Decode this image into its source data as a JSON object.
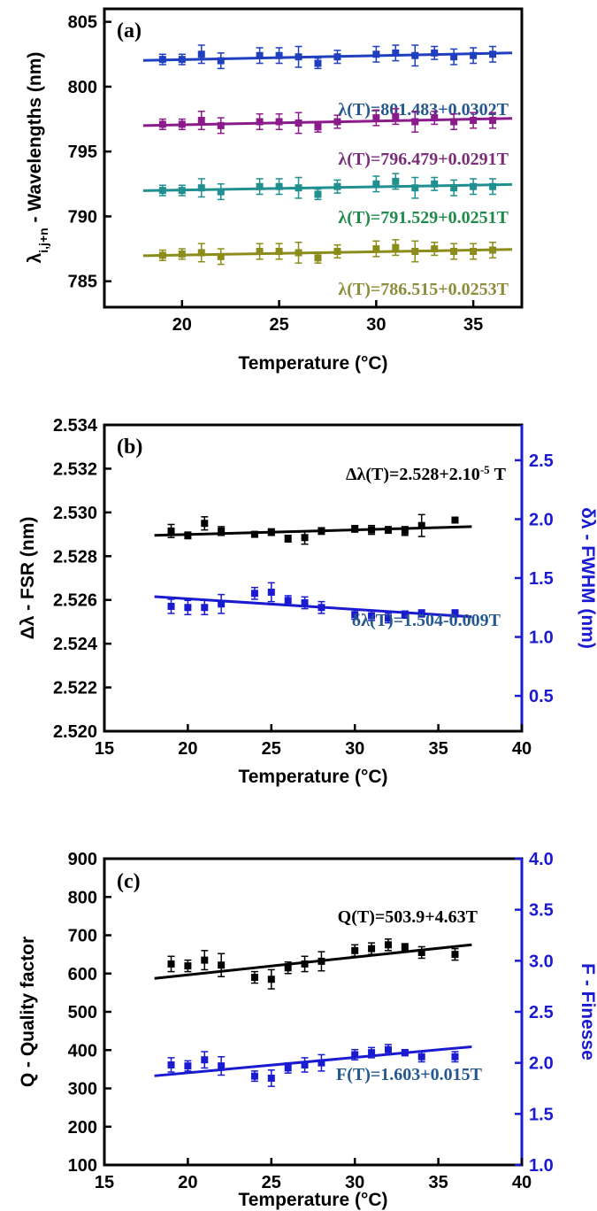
{
  "chart_data": [
    {
      "panel": "(a)",
      "type": "scatter",
      "xlabel": "Temperature (°C)",
      "ylabel_main": "λ",
      "ylabel_sub": "i,j+n",
      "ylabel_rest": " - Wavelengths (nm)",
      "xlim": [
        16,
        37.5
      ],
      "ylim": [
        783,
        806
      ],
      "xticks": [
        20,
        25,
        30,
        35
      ],
      "yticks": [
        785,
        790,
        795,
        800,
        805
      ],
      "series": [
        {
          "color": "#1f3fbf",
          "label_color": "#24588f",
          "equation": "λ(T)=801.483+0.0302T",
          "fit": {
            "intercept": 801.483,
            "slope": 0.0302,
            "x_range": [
              18,
              37
            ]
          },
          "x": [
            19,
            20,
            21,
            22,
            24,
            25,
            26,
            27,
            28,
            30,
            31,
            32,
            33,
            34,
            35,
            36
          ],
          "y": [
            802.1,
            802.1,
            802.5,
            802.0,
            802.4,
            802.4,
            802.3,
            801.8,
            802.3,
            802.5,
            802.6,
            802.4,
            802.6,
            802.3,
            802.4,
            802.5
          ],
          "err": [
            0.4,
            0.4,
            0.7,
            0.6,
            0.6,
            0.6,
            0.8,
            0.4,
            0.5,
            0.6,
            0.6,
            0.8,
            0.5,
            0.6,
            0.6,
            0.6
          ]
        },
        {
          "color": "#8b1a8b",
          "label_color": "#7a2e7a",
          "equation": "λ(T)=796.479+0.0291T",
          "fit": {
            "intercept": 796.479,
            "slope": 0.0291,
            "x_range": [
              18,
              37
            ]
          },
          "x": [
            19,
            20,
            21,
            22,
            24,
            25,
            26,
            27,
            28,
            30,
            31,
            32,
            33,
            34,
            35,
            36
          ],
          "y": [
            797.1,
            797.1,
            797.4,
            797.0,
            797.3,
            797.3,
            797.2,
            796.9,
            797.3,
            797.6,
            797.7,
            797.3,
            797.6,
            797.3,
            797.4,
            797.4
          ],
          "err": [
            0.4,
            0.4,
            0.7,
            0.6,
            0.6,
            0.6,
            0.8,
            0.4,
            0.5,
            0.6,
            0.6,
            0.8,
            0.5,
            0.6,
            0.6,
            0.6
          ]
        },
        {
          "color": "#1f8f8f",
          "label_color": "#1f8a4a",
          "equation": "λ(T)=791.529+0.0251T",
          "fit": {
            "intercept": 791.529,
            "slope": 0.0251,
            "x_range": [
              18,
              37
            ]
          },
          "x": [
            19,
            20,
            21,
            22,
            24,
            25,
            26,
            27,
            28,
            30,
            31,
            32,
            33,
            34,
            35,
            36
          ],
          "y": [
            792.0,
            792.0,
            792.2,
            791.9,
            792.3,
            792.3,
            792.2,
            791.7,
            792.3,
            792.5,
            792.7,
            792.2,
            792.5,
            792.2,
            792.3,
            792.3
          ],
          "err": [
            0.4,
            0.4,
            0.7,
            0.6,
            0.6,
            0.6,
            0.8,
            0.4,
            0.5,
            0.6,
            0.6,
            0.8,
            0.5,
            0.6,
            0.6,
            0.6
          ]
        },
        {
          "color": "#8c8c1a",
          "label_color": "#8c8c3a",
          "equation": "λ(T)=786.515+0.0253T",
          "fit": {
            "intercept": 786.515,
            "slope": 0.0253,
            "x_range": [
              18,
              37
            ]
          },
          "x": [
            19,
            20,
            21,
            22,
            24,
            25,
            26,
            27,
            28,
            30,
            31,
            32,
            33,
            34,
            35,
            36
          ],
          "y": [
            787.0,
            787.1,
            787.2,
            786.9,
            787.3,
            787.3,
            787.2,
            786.8,
            787.3,
            787.5,
            787.6,
            787.3,
            787.5,
            787.3,
            787.3,
            787.4
          ],
          "err": [
            0.4,
            0.4,
            0.7,
            0.6,
            0.6,
            0.6,
            0.8,
            0.4,
            0.5,
            0.6,
            0.6,
            0.8,
            0.5,
            0.6,
            0.6,
            0.6
          ]
        }
      ]
    },
    {
      "panel": "(b)",
      "type": "scatter",
      "xlabel": "Temperature (°C)",
      "ylabel_left": "Δλ - FSR (nm)",
      "ylabel_right": "δλ - FWHM (nm)",
      "xlim": [
        15,
        40
      ],
      "xticks": [
        15,
        20,
        25,
        30,
        35,
        40
      ],
      "ylim_left": [
        2.52,
        2.534
      ],
      "yticks_left": [
        "2.520",
        "2.522",
        "2.524",
        "2.526",
        "2.528",
        "2.530",
        "2.532",
        "2.534"
      ],
      "ylim_right": [
        0.2,
        2.8
      ],
      "yticks_right": [
        "0.5",
        "1.0",
        "1.5",
        "2.0",
        "2.5"
      ],
      "series": [
        {
          "axis": "left",
          "color": "#000000",
          "label_color": "#000000",
          "equation_main": "Δλ(T)=2.528+2.10",
          "equation_sup": "-5",
          "equation_tail": " T",
          "fit_line": {
            "x": [
              18,
              37
            ],
            "y": [
              2.52895,
              2.52935
            ]
          },
          "x": [
            19,
            20,
            21,
            22,
            24,
            25,
            26,
            27,
            28,
            30,
            31,
            32,
            33,
            34,
            36
          ],
          "y": [
            2.52915,
            2.52895,
            2.5295,
            2.52915,
            2.529,
            2.5291,
            2.5288,
            2.52885,
            2.52915,
            2.52925,
            2.5292,
            2.5292,
            2.52915,
            2.5294,
            2.52965
          ],
          "err": [
            0.0003,
            0.00015,
            0.0003,
            0.0002,
            0.0001,
            0.00015,
            0.00015,
            0.0003,
            0.00015,
            0.00015,
            0.0002,
            0.00015,
            0.0002,
            0.0005,
            0.0001
          ]
        },
        {
          "axis": "right",
          "color": "#1a1ad0",
          "label_color": "#24588f",
          "equation": "δλ(T)=1.504-0.009T",
          "fit": {
            "intercept": 1.504,
            "slope": -0.009,
            "x_range": [
              18,
              37
            ]
          },
          "x": [
            19,
            20,
            21,
            22,
            24,
            25,
            26,
            27,
            28,
            30,
            31,
            32,
            33,
            34,
            36
          ],
          "y": [
            1.26,
            1.25,
            1.25,
            1.28,
            1.37,
            1.38,
            1.31,
            1.29,
            1.25,
            1.19,
            1.18,
            1.16,
            1.19,
            1.2,
            1.2
          ],
          "err": [
            0.06,
            0.06,
            0.06,
            0.08,
            0.05,
            0.08,
            0.04,
            0.05,
            0.05,
            0.04,
            0.04,
            0.04,
            0.03,
            0.03,
            0.03
          ]
        }
      ]
    },
    {
      "panel": "(c)",
      "type": "scatter",
      "xlabel": "Temperature (°C)",
      "ylabel_left": "Q - Quality factor",
      "ylabel_right": "F - Finesse",
      "xlim": [
        15,
        40
      ],
      "xticks": [
        15,
        20,
        25,
        30,
        35,
        40
      ],
      "ylim_left": [
        100,
        900
      ],
      "yticks_left": [
        "100",
        "200",
        "300",
        "400",
        "500",
        "600",
        "700",
        "800",
        "900"
      ],
      "ylim_right": [
        1.0,
        4.0
      ],
      "yticks_right": [
        "1.0",
        "1.5",
        "2.0",
        "2.5",
        "3.0",
        "3.5",
        "4.0"
      ],
      "series": [
        {
          "axis": "left",
          "color": "#000000",
          "label_color": "#000000",
          "equation": "Q(T)=503.9+4.63T",
          "fit": {
            "intercept": 503.9,
            "slope": 4.63,
            "x_range": [
              18,
              37
            ]
          },
          "x": [
            19,
            20,
            21,
            22,
            24,
            25,
            26,
            27,
            28,
            30,
            31,
            32,
            33,
            34,
            36
          ],
          "y": [
            625,
            620,
            635,
            622,
            590,
            585,
            615,
            625,
            632,
            660,
            665,
            675,
            668,
            655,
            650
          ],
          "err": [
            20,
            15,
            25,
            30,
            15,
            25,
            15,
            20,
            25,
            15,
            15,
            15,
            10,
            15,
            15
          ]
        },
        {
          "axis": "right",
          "color": "#1a1ad0",
          "label_color": "#24588f",
          "equation": "F(T)=1.603+0.015T",
          "fit": {
            "intercept": 1.603,
            "slope": 0.015,
            "x_range": [
              18,
              37
            ]
          },
          "x": [
            19,
            20,
            21,
            22,
            24,
            25,
            26,
            27,
            28,
            30,
            31,
            32,
            33,
            34,
            36
          ],
          "y": [
            1.98,
            1.97,
            2.03,
            1.97,
            1.87,
            1.85,
            1.95,
            1.98,
            2.0,
            2.08,
            2.1,
            2.13,
            2.1,
            2.06,
            2.06
          ],
          "err": [
            0.07,
            0.05,
            0.08,
            0.09,
            0.05,
            0.08,
            0.05,
            0.07,
            0.08,
            0.05,
            0.05,
            0.05,
            0.03,
            0.05,
            0.05
          ]
        }
      ]
    }
  ]
}
